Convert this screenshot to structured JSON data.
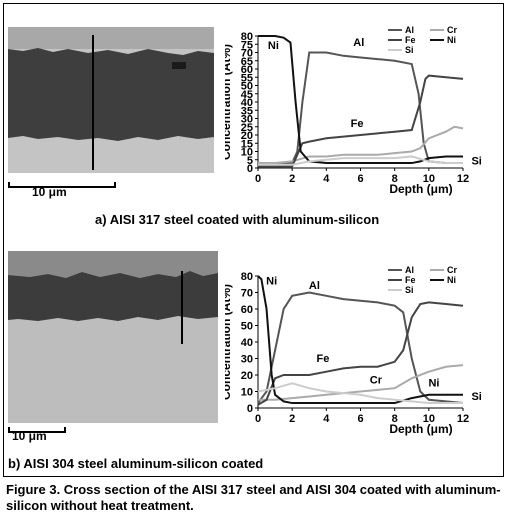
{
  "panels": [
    {
      "caption": "a) AISI 317 steel coated with aluminum-silicon",
      "scale_label": "10 μm",
      "chart_data": {
        "type": "line",
        "xlabel": "Depth (μm)",
        "ylabel": "Concentration (At%)",
        "xlim": [
          0,
          12
        ],
        "ylim": [
          0,
          80
        ],
        "xticks": [
          0,
          2,
          4,
          6,
          8,
          10,
          12
        ],
        "yticks": [
          0,
          5,
          10,
          15,
          20,
          25,
          30,
          35,
          40,
          45,
          50,
          55,
          60,
          65,
          70,
          75,
          80
        ],
        "legend": [
          "Al",
          "Cr",
          "Fe",
          "Ni",
          "Si"
        ],
        "legend_position": "top-right",
        "annotations": [
          {
            "text": "Ni",
            "x": 0.9,
            "y": 72
          },
          {
            "text": "Al",
            "x": 5.9,
            "y": 74
          },
          {
            "text": "Fe",
            "x": 5.8,
            "y": 25
          },
          {
            "text": "Si",
            "x": 12.8,
            "y": 2
          }
        ],
        "series": [
          {
            "name": "Al",
            "color": "#555555",
            "x": [
              0,
              1,
              2,
              2.3,
              2.6,
              3,
              4,
              5,
              6,
              7,
              8,
              9,
              9.4,
              9.7,
              10,
              11,
              12
            ],
            "values": [
              3,
              3,
              3,
              10,
              40,
              70,
              70,
              68,
              67,
              66,
              65,
              63,
              45,
              15,
              4,
              3,
              3
            ]
          },
          {
            "name": "Cr",
            "color": "#aaaaaa",
            "x": [
              0,
              1,
              2,
              3,
              4,
              5,
              6,
              7,
              8,
              9,
              9.5,
              10,
              11,
              11.5,
              12
            ],
            "values": [
              3,
              3,
              4,
              7,
              7,
              8,
              8,
              8,
              9,
              10,
              12,
              18,
              22,
              25,
              24
            ]
          },
          {
            "name": "Fe",
            "color": "#444444",
            "x": [
              0,
              1,
              2,
              2.3,
              2.6,
              3,
              4,
              5,
              6,
              7,
              8,
              9,
              9.5,
              9.8,
              10,
              11,
              12
            ],
            "values": [
              1,
              1,
              1,
              8,
              15,
              16,
              18,
              19,
              20,
              21,
              22,
              23,
              40,
              54,
              56,
              55,
              54
            ]
          },
          {
            "name": "Ni",
            "color": "#111111",
            "x": [
              0,
              0.5,
              1,
              1.5,
              1.9,
              2.2,
              2.5,
              3,
              4,
              5,
              6,
              7,
              8,
              9,
              9.5,
              10,
              11,
              12
            ],
            "values": [
              80,
              80,
              80,
              79,
              76,
              40,
              10,
              4,
              3,
              3,
              3,
              3,
              3,
              3,
              4,
              6,
              7,
              7
            ]
          },
          {
            "name": "Si",
            "color": "#cccccc",
            "x": [
              0,
              1,
              2,
              3,
              4,
              5,
              6,
              7,
              8,
              9,
              10,
              11,
              12
            ],
            "values": [
              2,
              2,
              2,
              4,
              5,
              6,
              6,
              6,
              6,
              7,
              4,
              3,
              3
            ]
          }
        ]
      }
    },
    {
      "caption": "b) AISI 304 steel aluminum-silicon coated",
      "scale_label": "10 μm",
      "chart_data": {
        "type": "line",
        "xlabel": "Depth (μm)",
        "ylabel": "Concentration (At%)",
        "xlim": [
          0,
          12
        ],
        "ylim": [
          0,
          80
        ],
        "xticks": [
          0,
          2,
          4,
          6,
          8,
          10,
          12
        ],
        "yticks": [
          0,
          10,
          20,
          30,
          40,
          50,
          60,
          70,
          80
        ],
        "legend": [
          "Al",
          "Cr",
          "Fe",
          "Ni",
          "Si"
        ],
        "legend_position": "top-right",
        "annotations": [
          {
            "text": "Ni",
            "x": 0.8,
            "y": 75
          },
          {
            "text": "Al",
            "x": 3.3,
            "y": 72
          },
          {
            "text": "Fe",
            "x": 3.8,
            "y": 28
          },
          {
            "text": "Cr",
            "x": 6.9,
            "y": 15
          },
          {
            "text": "Ni",
            "x": 10.3,
            "y": 13
          },
          {
            "text": "Si",
            "x": 12.8,
            "y": 5
          }
        ],
        "series": [
          {
            "name": "Al",
            "color": "#555555",
            "x": [
              0,
              0.5,
              1,
              1.5,
              2,
              3,
              4,
              5,
              6,
              7,
              8,
              8.5,
              9,
              9.5,
              10,
              11,
              12
            ],
            "values": [
              3,
              10,
              35,
              60,
              68,
              70,
              68,
              66,
              65,
              64,
              62,
              58,
              30,
              10,
              5,
              4,
              3
            ]
          },
          {
            "name": "Cr",
            "color": "#aaaaaa",
            "x": [
              0,
              1,
              2,
              3,
              4,
              5,
              6,
              7,
              8,
              9,
              10,
              11,
              12
            ],
            "values": [
              5,
              5,
              6,
              7,
              8,
              9,
              10,
              11,
              12,
              18,
              22,
              25,
              26
            ]
          },
          {
            "name": "Fe",
            "color": "#444444",
            "x": [
              0,
              0.5,
              1,
              1.5,
              2,
              3,
              4,
              5,
              6,
              7,
              8,
              8.5,
              9,
              9.5,
              10,
              11,
              12
            ],
            "values": [
              2,
              5,
              18,
              20,
              20,
              20,
              22,
              24,
              25,
              25,
              28,
              35,
              55,
              63,
              64,
              63,
              62
            ]
          },
          {
            "name": "Ni",
            "color": "#111111",
            "x": [
              0,
              0.2,
              0.5,
              0.8,
              1,
              1.5,
              2,
              3,
              4,
              5,
              6,
              7,
              8,
              9,
              10,
              11,
              12
            ],
            "values": [
              80,
              78,
              60,
              20,
              8,
              4,
              3,
              3,
              3,
              3,
              3,
              3,
              3,
              6,
              8,
              8,
              8
            ]
          },
          {
            "name": "Si",
            "color": "#cccccc",
            "x": [
              0,
              1,
              2,
              3,
              4,
              5,
              6,
              7,
              8,
              9,
              10,
              11,
              12
            ],
            "values": [
              10,
              12,
              15,
              12,
              10,
              9,
              8,
              6,
              5,
              4,
              3,
              3,
              3
            ]
          }
        ]
      }
    }
  ],
  "figure_caption": "Figure 3. Cross section of the AISI 317 steel and AISI 304 coated with aluminum-silicon without heat treatment."
}
